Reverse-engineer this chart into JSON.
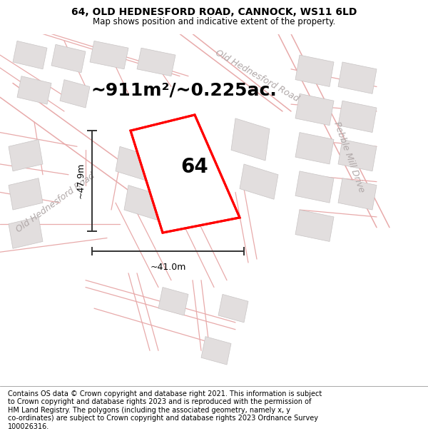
{
  "title": "64, OLD HEDNESFORD ROAD, CANNOCK, WS11 6LD",
  "subtitle": "Map shows position and indicative extent of the property.",
  "footer": "Contains OS data © Crown copyright and database right 2021. This information is subject\nto Crown copyright and database rights 2023 and is reproduced with the permission of\nHM Land Registry. The polygons (including the associated geometry, namely x, y\nco-ordinates) are subject to Crown copyright and database rights 2023 Ordnance Survey\n100026316.",
  "area_text": "~911m²/~0.225ac.",
  "plot_label": "64",
  "dim_height": "~47.9m",
  "dim_width": "~41.0m",
  "map_bg": "#f7f2f2",
  "road_color": "#e8aaaa",
  "building_fc": "#e2dede",
  "building_ec": "#c8c4c4",
  "road_label_1": "Old Hednesford Road",
  "road_label_2": "Pebble Mill Drive",
  "road_label_3": "Old Hednesford Road",
  "title_fontsize": 10,
  "subtitle_fontsize": 8.5,
  "footer_fontsize": 7,
  "area_fontsize": 18,
  "plot_label_fontsize": 20,
  "dim_fontsize": 9,
  "road_label_fontsize": 9
}
